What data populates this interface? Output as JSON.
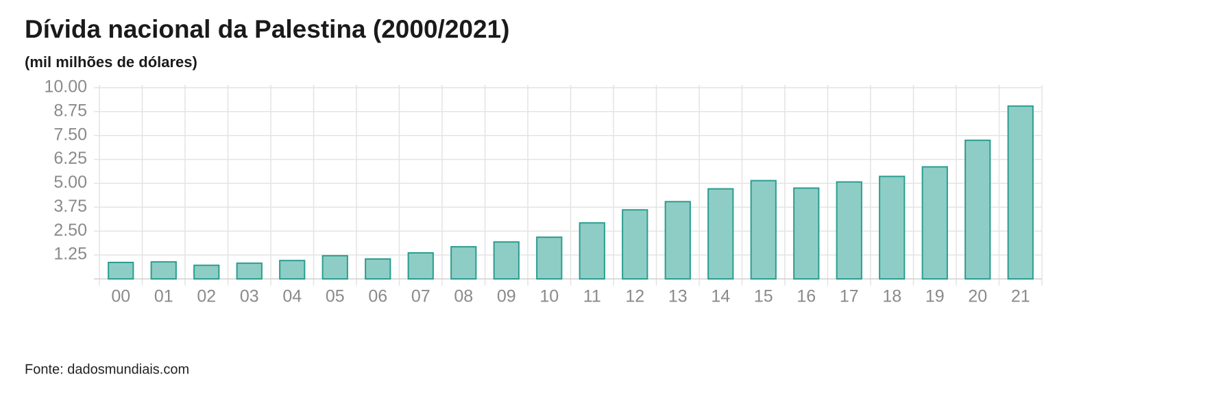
{
  "chart_data": {
    "type": "bar",
    "title": "Dívida nacional da Palestina (2000/2021)",
    "subtitle": "(mil milhões de dólares)",
    "source": "Fonte: dadosmundiais.com",
    "categories": [
      "00",
      "01",
      "02",
      "03",
      "04",
      "05",
      "06",
      "07",
      "08",
      "09",
      "10",
      "11",
      "12",
      "13",
      "14",
      "15",
      "16",
      "17",
      "18",
      "19",
      "20",
      "21"
    ],
    "values": [
      0.86,
      0.89,
      0.71,
      0.82,
      0.96,
      1.21,
      1.04,
      1.36,
      1.68,
      1.93,
      2.18,
      2.93,
      3.61,
      4.04,
      4.71,
      5.14,
      4.75,
      5.07,
      5.36,
      5.86,
      7.25,
      9.04
    ],
    "color": "#8ecdc5",
    "edge_color": "#2a9d8f",
    "ylim": [
      0,
      10
    ],
    "yticks": [
      1.25,
      {
        "value": 2.5,
        "label": "2.50"
      },
      3.75,
      {
        "value": 5,
        "label": "5.00"
      },
      6.25,
      {
        "value": 7.5,
        "label": "7.50"
      },
      8.75,
      {
        "value": 10,
        "label": "10.00"
      }
    ],
    "grid": true
  }
}
